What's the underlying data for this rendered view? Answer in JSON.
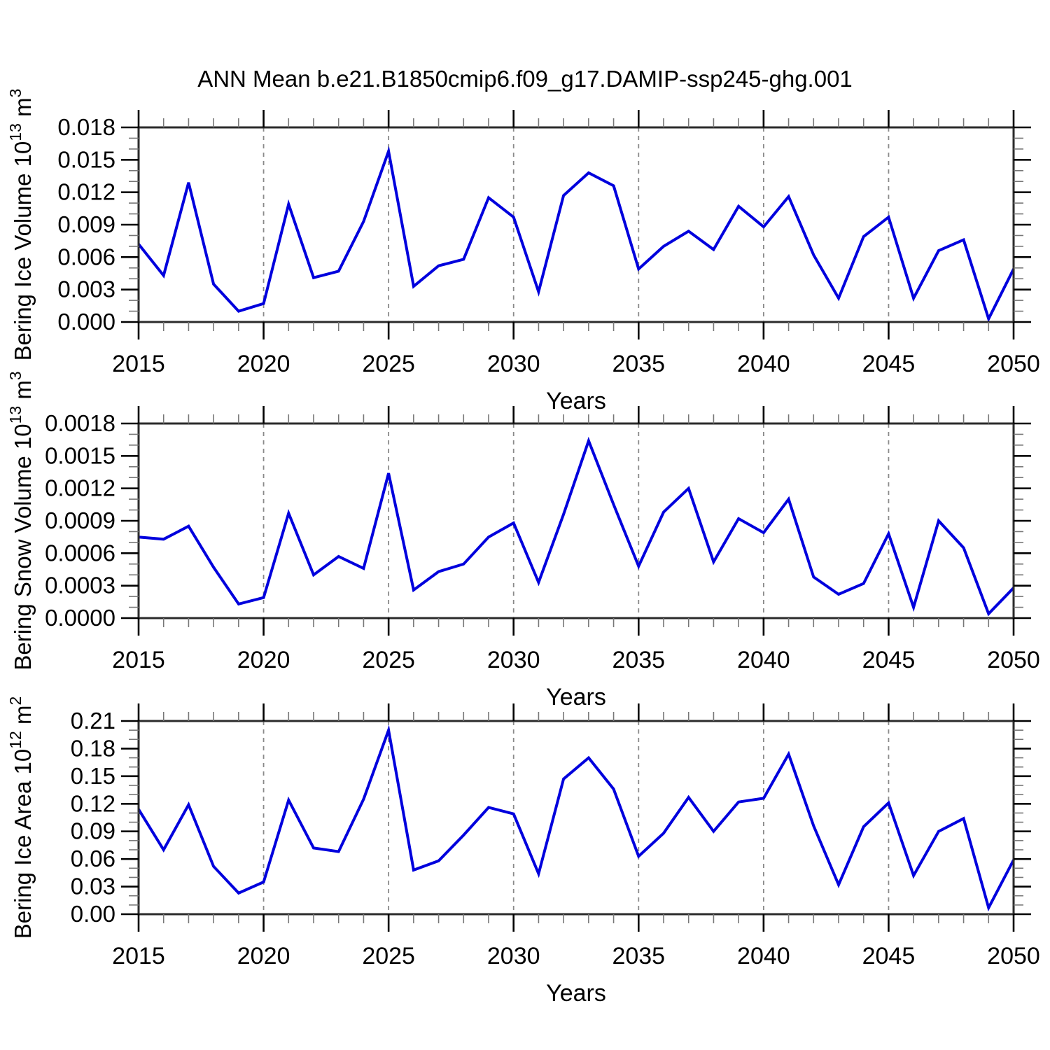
{
  "title": "ANN Mean b.e21.B1850cmip6.f09_g17.DAMIP-ssp245-ghg.001",
  "style": {
    "line_color": "#0000dd",
    "grid_color": "#8a8a8a",
    "frame_color": "#2b2b2b",
    "minor_tick_color": "#777777",
    "major_tick_color": "#000000"
  },
  "x_axis": {
    "label": "Years",
    "min": 2015,
    "max": 2050,
    "major_tick_labels": [
      "2015",
      "2020",
      "2025",
      "2030",
      "2035",
      "2040",
      "2045",
      "2050"
    ],
    "minor_step_years": 1,
    "dashed_grid_years": [
      2020,
      2025,
      2030,
      2035,
      2040,
      2045
    ]
  },
  "chart_data": [
    {
      "type": "line",
      "name": "bering-ice-volume",
      "ylabel_plain": "Bering Ice Volume 10^13 m^3",
      "ylabel": {
        "pre": "Bering Ice Volume 10",
        "sup": "13",
        "mid": " m",
        "sup2": "3"
      },
      "xlabel": "Years",
      "ylim": [
        0,
        0.018
      ],
      "ytick_labels": [
        "0.000",
        "0.003",
        "0.006",
        "0.009",
        "0.012",
        "0.015",
        "0.018"
      ],
      "y_minor_step": 0.001,
      "grid": "vertical-dashed",
      "legend": "none",
      "x": [
        2015,
        2016,
        2017,
        2018,
        2019,
        2020,
        2021,
        2022,
        2023,
        2024,
        2025,
        2026,
        2027,
        2028,
        2029,
        2030,
        2031,
        2032,
        2033,
        2034,
        2035,
        2036,
        2037,
        2038,
        2039,
        2040,
        2041,
        2042,
        2043,
        2044,
        2045,
        2046,
        2047,
        2048,
        2049,
        2050
      ],
      "values": [
        0.0072,
        0.0043,
        0.0129,
        0.0035,
        0.001,
        0.0017,
        0.0109,
        0.0041,
        0.0047,
        0.0093,
        0.0158,
        0.0033,
        0.0052,
        0.0058,
        0.0115,
        0.0097,
        0.0028,
        0.0117,
        0.0138,
        0.0126,
        0.0049,
        0.007,
        0.0084,
        0.0067,
        0.0107,
        0.0088,
        0.0116,
        0.0062,
        0.0022,
        0.0079,
        0.0097,
        0.0022,
        0.0066,
        0.0076,
        0.0003,
        0.0049
      ]
    },
    {
      "type": "line",
      "name": "bering-snow-volume",
      "ylabel_plain": "Bering Snow Volume 10^13 m^3",
      "ylabel": {
        "pre": "Bering Snow Volume 10",
        "sup": "13",
        "mid": " m",
        "sup2": "3"
      },
      "xlabel": "Years",
      "ylim": [
        0,
        0.0018
      ],
      "ytick_labels": [
        "0.0000",
        "0.0003",
        "0.0006",
        "0.0009",
        "0.0012",
        "0.0015",
        "0.0018"
      ],
      "y_minor_step": 0.0001,
      "grid": "vertical-dashed",
      "legend": "none",
      "x": [
        2015,
        2016,
        2017,
        2018,
        2019,
        2020,
        2021,
        2022,
        2023,
        2024,
        2025,
        2026,
        2027,
        2028,
        2029,
        2030,
        2031,
        2032,
        2033,
        2034,
        2035,
        2036,
        2037,
        2038,
        2039,
        2040,
        2041,
        2042,
        2043,
        2044,
        2045,
        2046,
        2047,
        2048,
        2049,
        2050
      ],
      "values": [
        0.00075,
        0.00073,
        0.00085,
        0.00047,
        0.00013,
        0.00019,
        0.00097,
        0.0004,
        0.00057,
        0.00046,
        0.00134,
        0.00026,
        0.00043,
        0.0005,
        0.00075,
        0.00088,
        0.00033,
        0.00096,
        0.00164,
        0.00105,
        0.00048,
        0.00098,
        0.0012,
        0.00052,
        0.00092,
        0.00079,
        0.0011,
        0.00038,
        0.00022,
        0.00032,
        0.00078,
        0.0001,
        0.0009,
        0.00065,
        4e-05,
        0.00028
      ]
    },
    {
      "type": "line",
      "name": "bering-ice-area",
      "ylabel_plain": "Bering Ice Area 10^12 m^2",
      "ylabel": {
        "pre": "Bering Ice Area 10",
        "sup": "12",
        "mid": " m",
        "sup2": "2"
      },
      "xlabel": "Years",
      "ylim": [
        0,
        0.21
      ],
      "ytick_labels": [
        "0.00",
        "0.03",
        "0.06",
        "0.09",
        "0.12",
        "0.15",
        "0.18",
        "0.21"
      ],
      "y_minor_step": 0.01,
      "grid": "vertical-dashed",
      "legend": "none",
      "x": [
        2015,
        2016,
        2017,
        2018,
        2019,
        2020,
        2021,
        2022,
        2023,
        2024,
        2025,
        2026,
        2027,
        2028,
        2029,
        2030,
        2031,
        2032,
        2033,
        2034,
        2035,
        2036,
        2037,
        2038,
        2039,
        2040,
        2041,
        2042,
        2043,
        2044,
        2045,
        2046,
        2047,
        2048,
        2049,
        2050
      ],
      "values": [
        0.114,
        0.07,
        0.119,
        0.052,
        0.023,
        0.035,
        0.124,
        0.072,
        0.068,
        0.125,
        0.2,
        0.048,
        0.058,
        0.086,
        0.116,
        0.109,
        0.044,
        0.147,
        0.17,
        0.136,
        0.063,
        0.088,
        0.127,
        0.09,
        0.122,
        0.126,
        0.174,
        0.096,
        0.032,
        0.095,
        0.121,
        0.042,
        0.09,
        0.104,
        0.007,
        0.059
      ]
    }
  ]
}
